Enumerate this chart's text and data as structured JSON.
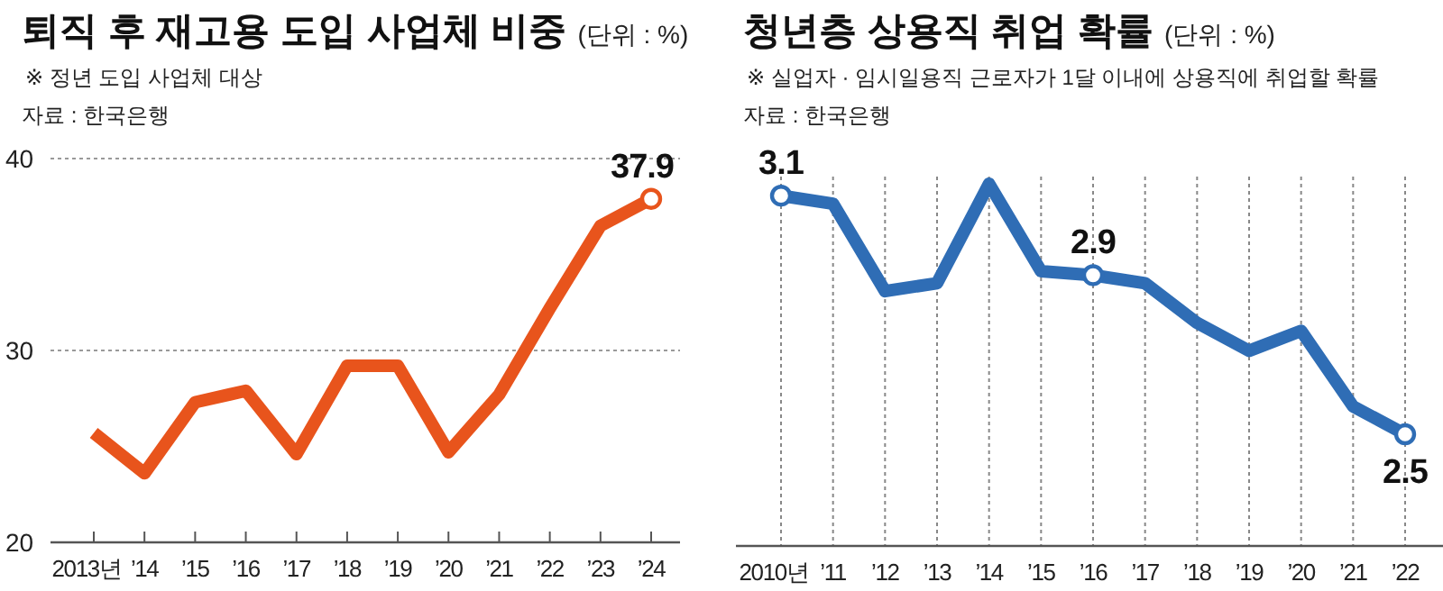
{
  "chart_data": [
    {
      "type": "line",
      "title": "퇴직 후 재고용 도입 사업체 비중",
      "ylabel": "(단위 : %)",
      "subtitle": "※ 정년 도입 사업체 대상",
      "annotations": [
        "자료 : 한국은행"
      ],
      "categories": [
        "2013년",
        "’14",
        "’15",
        "’16",
        "’17",
        "’18",
        "’19",
        "’20",
        "’21",
        "’22",
        "’23",
        "’24"
      ],
      "series": [
        {
          "color": "#e8541c",
          "values": [
            25.7,
            23.6,
            27.3,
            27.9,
            24.6,
            29.2,
            29.2,
            24.7,
            27.7,
            32.2,
            36.5,
            37.9
          ],
          "value_labels": [
            null,
            null,
            null,
            null,
            null,
            null,
            null,
            null,
            null,
            null,
            null,
            "37.9"
          ]
        }
      ],
      "ylim": [
        20,
        40
      ],
      "yticks": [
        20,
        30,
        40
      ],
      "grid": "y",
      "line_style": "solid"
    },
    {
      "type": "line",
      "title": "청년층 상용직 취업 확률",
      "ylabel": "(단위 : %)",
      "subtitle": "※ 실업자 · 임시일용직 근로자가 1달 이내에 상용직에 취업할 확률",
      "annotations": [
        "자료 : 한국은행"
      ],
      "categories": [
        "2010년",
        "’11",
        "’12",
        "’13",
        "’14",
        "’15",
        "’16",
        "’17",
        "’18",
        "’19",
        "’20",
        "’21",
        "’22"
      ],
      "series": [
        {
          "color": "#2f6db5",
          "values": [
            3.1,
            3.08,
            2.86,
            2.88,
            3.13,
            2.91,
            2.9,
            2.88,
            2.78,
            2.71,
            2.76,
            2.57,
            2.5
          ],
          "value_labels": [
            "3.1",
            null,
            null,
            null,
            null,
            null,
            "2.9",
            null,
            null,
            null,
            null,
            null,
            "2.5"
          ]
        }
      ],
      "grid": "x",
      "tick_labels": "x",
      "line_style": "solid"
    }
  ]
}
